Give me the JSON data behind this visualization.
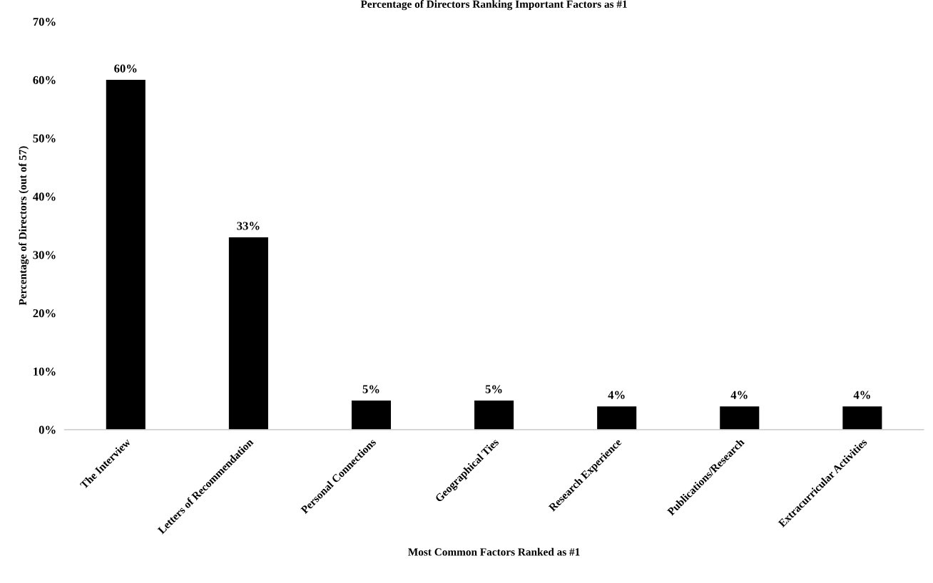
{
  "chart_data": {
    "type": "bar",
    "title": "Percentage of Directors Ranking Important Factors as #1",
    "xlabel": "Most Common Factors Ranked as #1",
    "ylabel": "Percentage of Directors (out of 57)",
    "categories": [
      "The Interview",
      "Letters of Recommendation",
      "Personal Connections",
      "Geographical Ties",
      "Research Experience",
      "Publications/Research",
      "Extracurricular Activities"
    ],
    "values": [
      60,
      33,
      5,
      5,
      4,
      4,
      4
    ],
    "color": "#000000",
    "value_labels": [
      "60%",
      "33%",
      "5%",
      "5%",
      "4%",
      "4%",
      "4%"
    ],
    "ylim": [
      0,
      70
    ],
    "yticks": [
      {
        "value": 0,
        "label": "0%"
      },
      {
        "value": 10,
        "label": "10%"
      },
      {
        "value": 20,
        "label": "20%"
      },
      {
        "value": 30,
        "label": "30%"
      },
      {
        "value": 40,
        "label": "40%"
      },
      {
        "value": 50,
        "label": "50%"
      },
      {
        "value": 60,
        "label": "60%"
      },
      {
        "value": 70,
        "label": "70%"
      }
    ],
    "grid": false,
    "legend": false
  }
}
